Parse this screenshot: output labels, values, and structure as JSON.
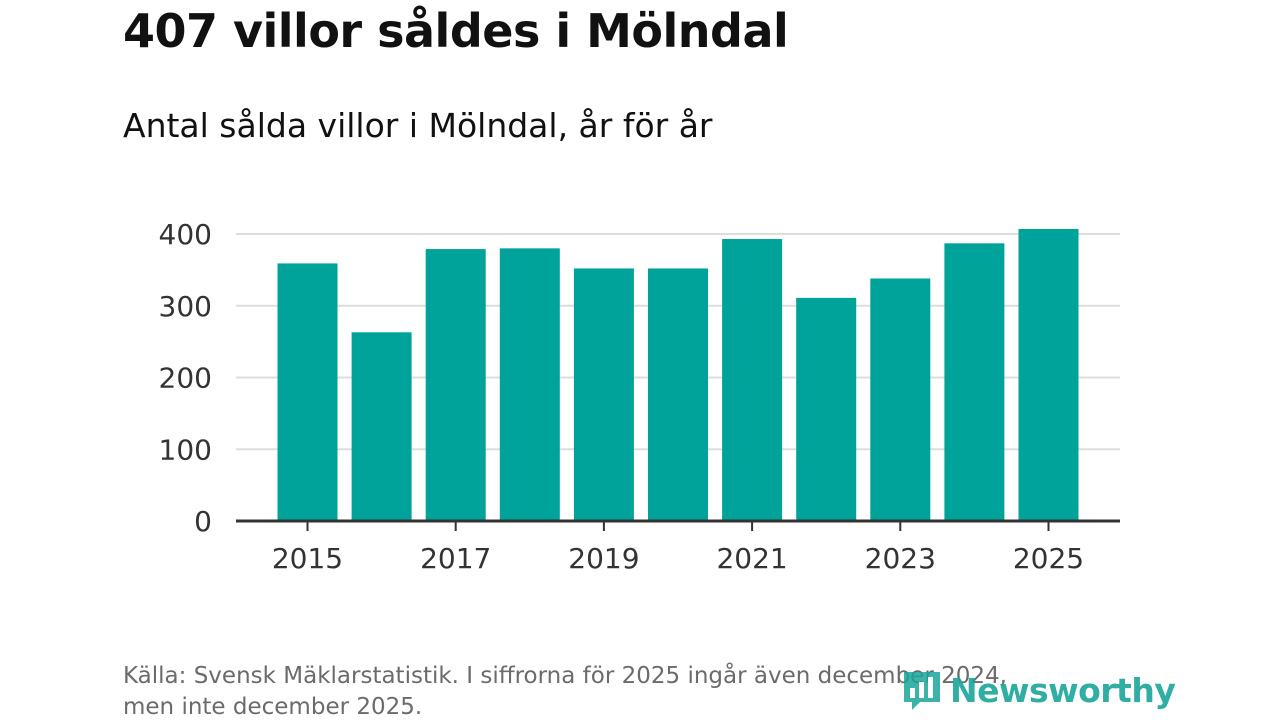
{
  "header": {
    "title": "407 villor såldes i Mölndal",
    "subtitle": "Antal sålda villor i Mölndal, år för år"
  },
  "footer": {
    "source_line1": "Källa: Svensk Mäklarstatistik. I siffrorna för 2025 ingår även december 2024,",
    "source_line2": "men inte december 2025.",
    "logo_text": "Newsworthy"
  },
  "colors": {
    "bar": "#00a39a",
    "axis": "#333333",
    "grid": "#dddddd",
    "logo": "#1aa69a"
  },
  "chart_data": {
    "type": "bar",
    "title": "Antal sålda villor i Mölndal, år för år",
    "xlabel": "",
    "ylabel": "",
    "categories": [
      "2015",
      "2016",
      "2017",
      "2018",
      "2019",
      "2020",
      "2021",
      "2022",
      "2023",
      "2024",
      "2025"
    ],
    "values": [
      359,
      263,
      379,
      380,
      352,
      352,
      393,
      311,
      338,
      387,
      407
    ],
    "ylim": [
      0,
      400
    ],
    "yticks": [
      0,
      100,
      200,
      300,
      400
    ],
    "xtick_labels": [
      "2015",
      "2017",
      "2019",
      "2021",
      "2023",
      "2025"
    ],
    "grid": true
  }
}
